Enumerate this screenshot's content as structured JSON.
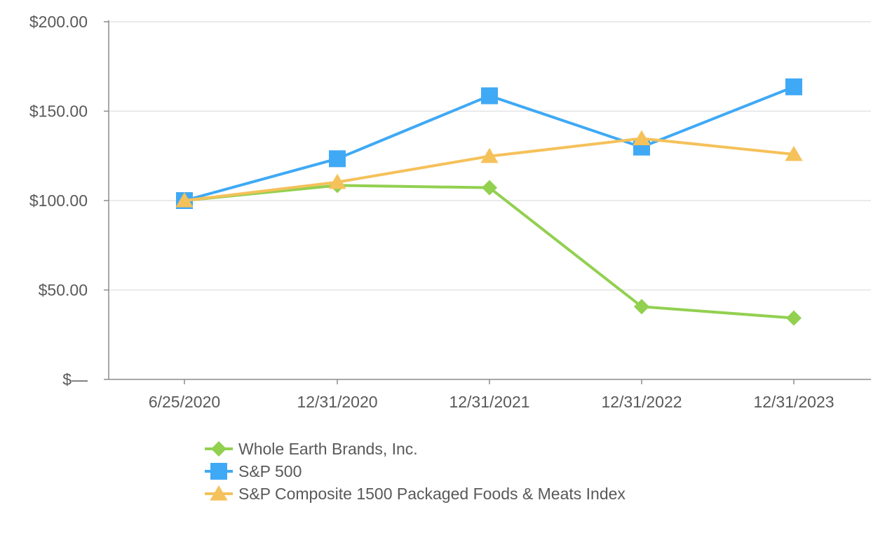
{
  "chart_data": {
    "type": "line",
    "title": "",
    "xlabel": "",
    "ylabel": "",
    "categories": [
      "6/25/2020",
      "12/31/2020",
      "12/31/2021",
      "12/31/2022",
      "12/31/2023"
    ],
    "ylim": [
      0,
      200
    ],
    "y_ticks": [
      {
        "value": 0,
        "label": "$—"
      },
      {
        "value": 50,
        "label": "$50.00"
      },
      {
        "value": 100,
        "label": "$100.00"
      },
      {
        "value": 150,
        "label": "$150.00"
      },
      {
        "value": 200,
        "label": "$200.00"
      }
    ],
    "grid": true,
    "legend_position": "bottom",
    "series": [
      {
        "name": "Whole Earth Brands, Inc.",
        "key": "whole-earth",
        "color": "#92d050",
        "marker": "diamond",
        "values": [
          100.0,
          108.5,
          107.2,
          40.7,
          34.3
        ]
      },
      {
        "name": "S&P 500",
        "key": "sp500",
        "color": "#3fa9f5",
        "marker": "square",
        "values": [
          100.0,
          123.4,
          158.6,
          129.9,
          163.6
        ]
      },
      {
        "name": "S&P Composite 1500 Packaged Foods & Meats Index",
        "key": "sp1500-foods",
        "color": "#f5c15a",
        "marker": "triangle",
        "values": [
          100.0,
          110.3,
          124.8,
          134.7,
          125.9
        ]
      }
    ]
  }
}
